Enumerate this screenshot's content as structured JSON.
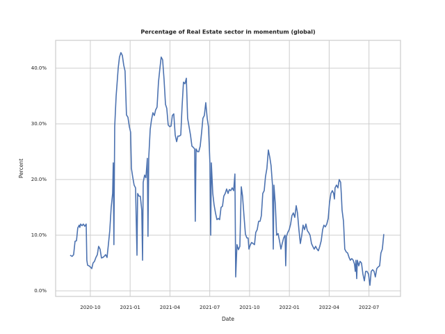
{
  "chart_data": {
    "type": "line",
    "title": "Percentage of Real Estate sector in momentum (global)",
    "xlabel": "Date",
    "ylabel": "Percent",
    "color": "#4c72b0",
    "grid": true,
    "xlim": [
      2020.532,
      2022.698
    ],
    "xticks": [
      {
        "value": 2020.75,
        "label": "2020-10"
      },
      {
        "value": 2021.0,
        "label": "2021-01"
      },
      {
        "value": 2021.25,
        "label": "2021-04"
      },
      {
        "value": 2021.5,
        "label": "2021-07"
      },
      {
        "value": 2021.75,
        "label": "2021-10"
      },
      {
        "value": 2022.0,
        "label": "2022-01"
      },
      {
        "value": 2022.25,
        "label": "2022-04"
      },
      {
        "value": 2022.5,
        "label": "2022-07"
      }
    ],
    "ylim": [
      -1,
      45
    ],
    "yticks": [
      {
        "value": 0,
        "label": "0.0%"
      },
      {
        "value": 10,
        "label": "10.0%"
      },
      {
        "value": 20,
        "label": "20.0%"
      },
      {
        "value": 30,
        "label": "30.0%"
      },
      {
        "value": 40,
        "label": "40.0%"
      }
    ],
    "x": [
      2020.623,
      2020.636,
      2020.645,
      2020.654,
      2020.663,
      2020.671,
      2020.68,
      2020.684,
      2020.689,
      2020.698,
      2020.706,
      2020.715,
      2020.724,
      2020.728,
      2020.733,
      2020.741,
      2020.75,
      2020.759,
      2020.767,
      2020.776,
      2020.785,
      2020.794,
      2020.802,
      2020.811,
      2020.82,
      2020.829,
      2020.837,
      2020.846,
      2020.855,
      2020.864,
      2020.872,
      2020.881,
      2020.89,
      2020.894,
      2020.898,
      2020.903,
      2020.912,
      2020.916,
      2020.925,
      2020.933,
      2020.942,
      2020.951,
      2020.96,
      2020.968,
      2020.977,
      2020.986,
      2020.995,
      2021.003,
      2021.008,
      2021.016,
      2021.025,
      2021.034,
      2021.043,
      2021.047,
      2021.056,
      2021.064,
      2021.073,
      2021.078,
      2021.082,
      2021.091,
      2021.099,
      2021.108,
      2021.112,
      2021.117,
      2021.126,
      2021.134,
      2021.143,
      2021.152,
      2021.16,
      2021.169,
      2021.178,
      2021.187,
      2021.195,
      2021.204,
      2021.213,
      2021.222,
      2021.23,
      2021.239,
      2021.248,
      2021.257,
      2021.265,
      2021.274,
      2021.283,
      2021.292,
      2021.3,
      2021.309,
      2021.318,
      2021.326,
      2021.335,
      2021.344,
      2021.353,
      2021.361,
      2021.37,
      2021.379,
      2021.388,
      2021.396,
      2021.405,
      2021.409,
      2021.414,
      2021.423,
      2021.431,
      2021.44,
      2021.449,
      2021.457,
      2021.466,
      2021.475,
      2021.484,
      2021.492,
      2021.501,
      2021.506,
      2021.51,
      2021.519,
      2021.527,
      2021.536,
      2021.545,
      2021.554,
      2021.562,
      2021.571,
      2021.58,
      2021.588,
      2021.597,
      2021.606,
      2021.615,
      2021.623,
      2021.632,
      2021.641,
      2021.65,
      2021.658,
      2021.663,
      2021.671,
      2021.68,
      2021.689,
      2021.698,
      2021.706,
      2021.715,
      2021.724,
      2021.733,
      2021.741,
      2021.746,
      2021.754,
      2021.763,
      2021.772,
      2021.781,
      2021.789,
      2021.798,
      2021.807,
      2021.816,
      2021.824,
      2021.833,
      2021.842,
      2021.85,
      2021.859,
      2021.868,
      2021.877,
      2021.885,
      2021.894,
      2021.899,
      2021.903,
      2021.912,
      2021.92,
      2021.929,
      2021.938,
      2021.947,
      2021.955,
      2021.964,
      2021.973,
      2021.977,
      2021.982,
      2021.99,
      2021.999,
      2022.008,
      2022.016,
      2022.025,
      2022.034,
      2022.043,
      2022.051,
      2022.06,
      2022.069,
      2022.078,
      2022.086,
      2022.095,
      2022.104,
      2022.113,
      2022.121,
      2022.13,
      2022.139,
      2022.147,
      2022.156,
      2022.165,
      2022.174,
      2022.182,
      2022.191,
      2022.2,
      2022.209,
      2022.217,
      2022.226,
      2022.235,
      2022.244,
      2022.252,
      2022.261,
      2022.27,
      2022.278,
      2022.283,
      2022.287,
      2022.296,
      2022.305,
      2022.313,
      2022.322,
      2022.327,
      2022.331,
      2022.34,
      2022.348,
      2022.357,
      2022.366,
      2022.375,
      2022.383,
      2022.392,
      2022.401,
      2022.409,
      2022.414,
      2022.418,
      2022.423,
      2022.427,
      2022.436,
      2022.444,
      2022.453,
      2022.462,
      2022.471,
      2022.479,
      2022.488,
      2022.497,
      2022.506,
      2022.514,
      2022.523,
      2022.532,
      2022.54,
      2022.549,
      2022.558,
      2022.567,
      2022.575,
      2022.584,
      2022.593
    ],
    "values": [
      6.4,
      6.2,
      6.5,
      8.9,
      9.0,
      11.3,
      11.8,
      11.4,
      12.0,
      11.7,
      12.0,
      11.6,
      12.0,
      5.5,
      4.6,
      4.5,
      4.3,
      4.0,
      5.0,
      5.3,
      6.0,
      6.5,
      8.0,
      7.5,
      5.9,
      6.0,
      6.2,
      6.5,
      6.0,
      8.5,
      10.8,
      15.0,
      17.5,
      23.0,
      8.3,
      29.5,
      35.0,
      36.5,
      40.0,
      42.0,
      42.8,
      42.3,
      40.5,
      39.5,
      31.6,
      31.2,
      29.5,
      28.5,
      22.0,
      20.5,
      19.0,
      18.5,
      6.4,
      17.5,
      17.0,
      17.0,
      14.5,
      5.5,
      19.5,
      20.8,
      20.3,
      23.8,
      9.8,
      24.0,
      29.0,
      30.7,
      32.0,
      31.5,
      32.5,
      33.0,
      37.5,
      40.0,
      42.0,
      41.5,
      38.0,
      33.5,
      32.8,
      29.8,
      29.5,
      29.6,
      31.5,
      31.8,
      28.0,
      26.8,
      27.8,
      27.8,
      28.0,
      33.0,
      37.5,
      37.2,
      38.2,
      31.0,
      29.5,
      28.0,
      26.0,
      25.8,
      25.5,
      12.5,
      25.5,
      25.0,
      25.0,
      26.0,
      28.5,
      31.0,
      31.5,
      33.8,
      31.0,
      29.5,
      23.0,
      10.0,
      23.0,
      17.5,
      15.5,
      14.0,
      12.8,
      13.0,
      12.8,
      15.0,
      15.2,
      17.0,
      17.5,
      18.3,
      17.5,
      18.2,
      18.0,
      18.5,
      18.0,
      21.0,
      2.5,
      8.3,
      7.4,
      8.0,
      18.7,
      17.0,
      13.5,
      10.2,
      9.5,
      9.5,
      7.5,
      8.2,
      8.7,
      8.5,
      8.3,
      10.5,
      11.0,
      12.5,
      12.5,
      13.5,
      17.5,
      18.0,
      20.5,
      22.0,
      25.3,
      24.0,
      22.5,
      19.0,
      7.5,
      19.0,
      15.5,
      10.0,
      10.3,
      9.0,
      7.5,
      8.5,
      9.5,
      10.0,
      4.5,
      9.8,
      10.5,
      11.0,
      12.0,
      13.5,
      14.0,
      13.2,
      15.3,
      14.0,
      11.0,
      8.5,
      10.0,
      11.8,
      11.0,
      12.0,
      10.8,
      10.5,
      10.0,
      8.5,
      8.0,
      7.5,
      8.0,
      7.5,
      7.2,
      8.0,
      9.0,
      11.0,
      11.8,
      11.5,
      12.0,
      13.0,
      15.8,
      17.5,
      18.0,
      17.5,
      16.5,
      18.5,
      19.0,
      18.5,
      20.0,
      19.5,
      17.0,
      14.5,
      12.5,
      7.5,
      7.0,
      6.8,
      6.0,
      5.5,
      5.8,
      5.5,
      4.8,
      3.5,
      5.5,
      2.2,
      5.5,
      4.5,
      5.3,
      5.0,
      3.0,
      1.8,
      3.5,
      3.5,
      3.0,
      1.0,
      3.5,
      3.8,
      3.5,
      2.5,
      4.0,
      4.3,
      4.5,
      6.8,
      7.5,
      10.2
    ]
  }
}
